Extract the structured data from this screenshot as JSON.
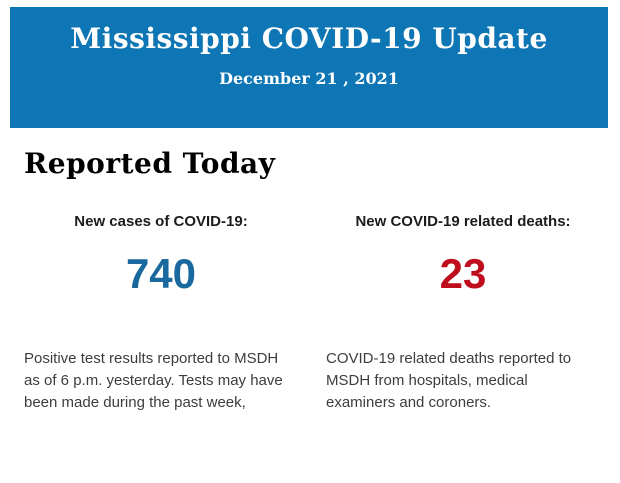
{
  "header": {
    "title": "Mississippi COVID-19 Update",
    "date": "December 21 , 2021",
    "background_color": "#0e76b4",
    "text_color": "#ffffff"
  },
  "main": {
    "section_title": "Reported Today",
    "stats": [
      {
        "label": "New cases of COVID-19:",
        "value": "740",
        "value_color": "#19699e",
        "description": "Positive test results reported to MSDH as of 6 p.m. yesterday. Tests may have been made during the past week,"
      },
      {
        "label": "New COVID-19 related deaths:",
        "value": "23",
        "value_color": "#c00d1e",
        "description": "COVID-19 related deaths reported to MSDH from hospitals, medical examiners and coroners."
      }
    ]
  }
}
